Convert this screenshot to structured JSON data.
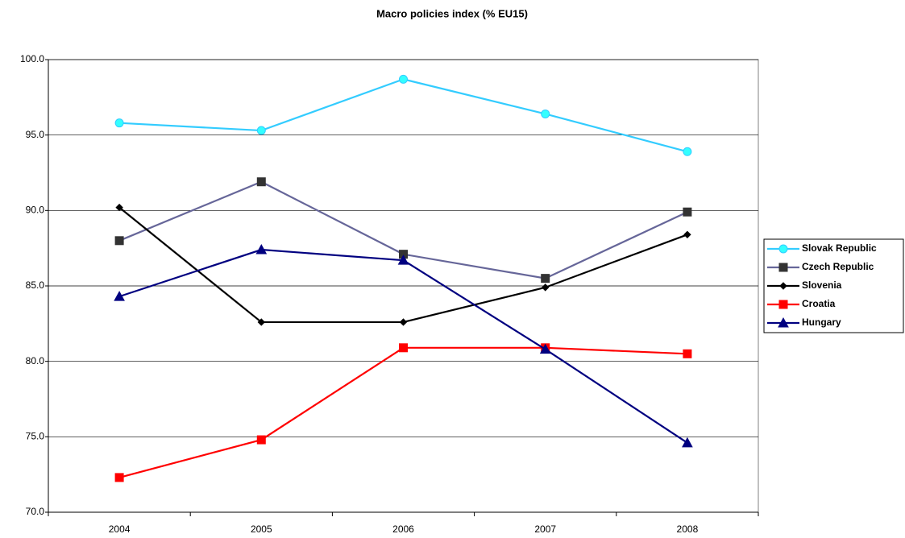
{
  "chart_data": {
    "type": "line",
    "title": "Macro policies index (% EU15)",
    "categories": [
      "2004",
      "2005",
      "2006",
      "2007",
      "2008"
    ],
    "series": [
      {
        "name": "Slovak Republic",
        "color": "#33ccff",
        "marker": "circle",
        "marker_color": "#33ffff",
        "values": [
          95.8,
          95.3,
          98.7,
          96.4,
          93.9
        ]
      },
      {
        "name": "Czech Republic",
        "color": "#666699",
        "marker": "square",
        "marker_color": "#333333",
        "values": [
          88.0,
          91.9,
          87.1,
          85.5,
          89.9
        ]
      },
      {
        "name": "Slovenia",
        "color": "#000000",
        "marker": "diamond",
        "marker_color": "#000000",
        "values": [
          90.2,
          82.6,
          82.6,
          84.9,
          88.4
        ]
      },
      {
        "name": "Croatia",
        "color": "#ff0000",
        "marker": "square",
        "marker_color": "#ff0000",
        "values": [
          72.3,
          74.8,
          80.9,
          80.9,
          80.5
        ]
      },
      {
        "name": "Hungary",
        "color": "#000080",
        "marker": "triangle",
        "marker_color": "#000080",
        "values": [
          84.3,
          87.4,
          86.7,
          80.8,
          74.6
        ]
      }
    ],
    "ylim": [
      70,
      100
    ],
    "yticks": [
      {
        "value": 70,
        "label": "70.0"
      },
      {
        "value": 75,
        "label": "75.0"
      },
      {
        "value": 80,
        "label": "80.0"
      },
      {
        "value": 85,
        "label": "85.0"
      },
      {
        "value": 90,
        "label": "90.0"
      },
      {
        "value": 95,
        "label": "95.0"
      },
      {
        "value": 100,
        "label": "100.0"
      }
    ],
    "grid": true,
    "legend": "right"
  }
}
